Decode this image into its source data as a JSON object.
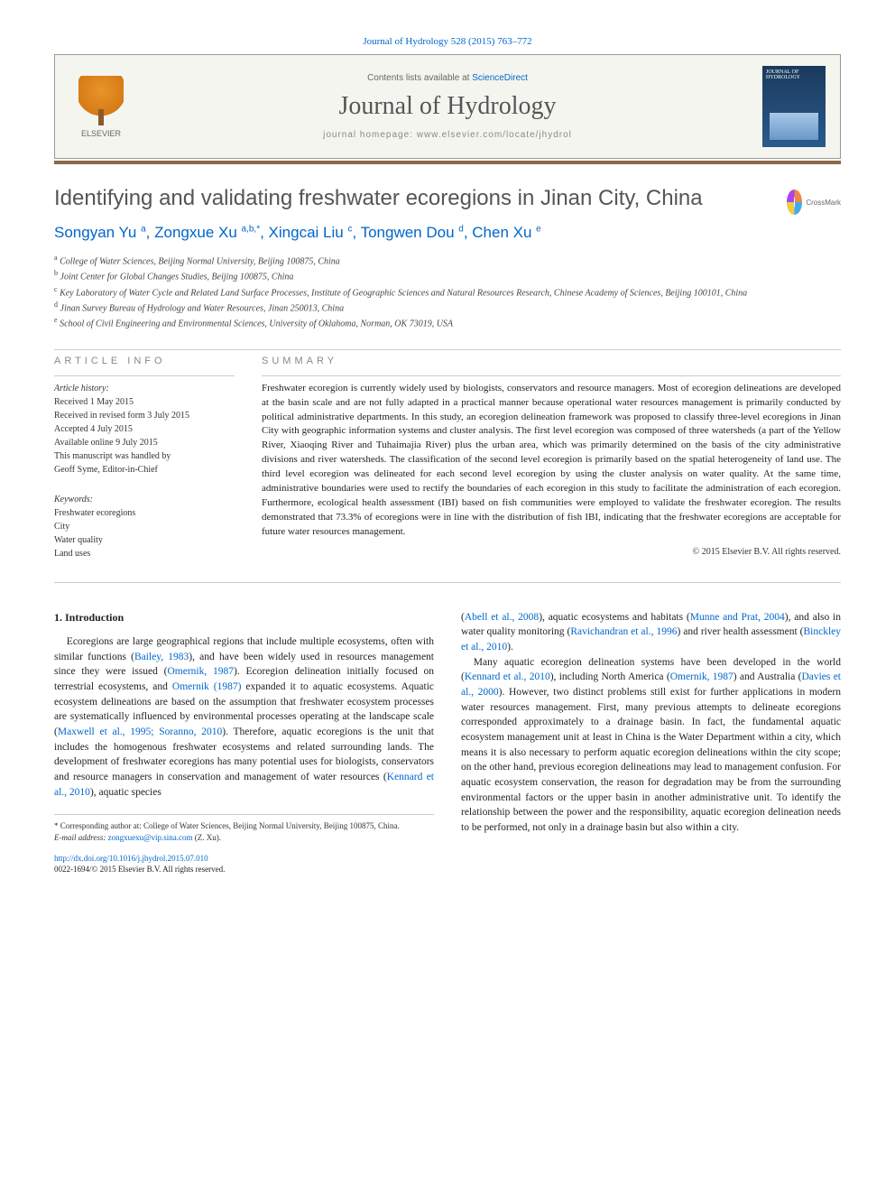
{
  "citation": "Journal of Hydrology 528 (2015) 763–772",
  "header": {
    "publisher": "ELSEVIER",
    "contents_prefix": "Contents lists available at ",
    "contents_link": "ScienceDirect",
    "journal": "Journal of Hydrology",
    "homepage_prefix": "journal homepage: ",
    "homepage": "www.elsevier.com/locate/jhydrol",
    "cover_label": "JOURNAL OF HYDROLOGY"
  },
  "crossmark": "CrossMark",
  "title": "Identifying and validating freshwater ecoregions in Jinan City, China",
  "authors_html": "Songyan Yu <sup>a</sup>, Zongxue Xu <sup>a,b,*</sup>, Xingcai Liu <sup>c</sup>, Tongwen Dou <sup>d</sup>, Chen Xu <sup>e</sup>",
  "affiliations": [
    {
      "sup": "a",
      "text": "College of Water Sciences, Beijing Normal University, Beijing 100875, China"
    },
    {
      "sup": "b",
      "text": "Joint Center for Global Changes Studies, Beijing 100875, China"
    },
    {
      "sup": "c",
      "text": "Key Laboratory of Water Cycle and Related Land Surface Processes, Institute of Geographic Sciences and Natural Resources Research, Chinese Academy of Sciences, Beijing 100101, China"
    },
    {
      "sup": "d",
      "text": "Jinan Survey Bureau of Hydrology and Water Resources, Jinan 250013, China"
    },
    {
      "sup": "e",
      "text": "School of Civil Engineering and Environmental Sciences, University of Oklahoma, Norman, OK 73019, USA"
    }
  ],
  "info": {
    "label": "ARTICLE INFO",
    "history_label": "Article history:",
    "history": [
      "Received 1 May 2015",
      "Received in revised form 3 July 2015",
      "Accepted 4 July 2015",
      "Available online 9 July 2015",
      "This manuscript was handled by",
      "Geoff Syme, Editor-in-Chief"
    ],
    "keywords_label": "Keywords:",
    "keywords": [
      "Freshwater ecoregions",
      "City",
      "Water quality",
      "Land uses"
    ]
  },
  "summary": {
    "label": "SUMMARY",
    "text": "Freshwater ecoregion is currently widely used by biologists, conservators and resource managers. Most of ecoregion delineations are developed at the basin scale and are not fully adapted in a practical manner because operational water resources management is primarily conducted by political administrative departments. In this study, an ecoregion delineation framework was proposed to classify three-level ecoregions in Jinan City with geographic information systems and cluster analysis. The first level ecoregion was composed of three watersheds (a part of the Yellow River, Xiaoqing River and Tuhaimajia River) plus the urban area, which was primarily determined on the basis of the city administrative divisions and river watersheds. The classification of the second level ecoregion is primarily based on the spatial heterogeneity of land use. The third level ecoregion was delineated for each second level ecoregion by using the cluster analysis on water quality. At the same time, administrative boundaries were used to rectify the boundaries of each ecoregion in this study to facilitate the administration of each ecoregion. Furthermore, ecological health assessment (IBI) based on fish communities were employed to validate the freshwater ecoregion. The results demonstrated that 73.3% of ecoregions were in line with the distribution of fish IBI, indicating that the freshwater ecoregions are acceptable for future water resources management.",
    "copyright": "© 2015 Elsevier B.V. All rights reserved."
  },
  "body": {
    "heading": "1. Introduction",
    "col1_p1_pre": "Ecoregions are large geographical regions that include multiple ecosystems, often with similar functions (",
    "col1_p1_r1": "Bailey, 1983",
    "col1_p1_m1": "), and have been widely used in resources management since they were issued (",
    "col1_p1_r2": "Omernik, 1987",
    "col1_p1_m2": "). Ecoregion delineation initially focused on terrestrial ecosystems, and ",
    "col1_p1_r3": "Omernik (1987)",
    "col1_p1_m3": " expanded it to aquatic ecosystems. Aquatic ecosystem delineations are based on the assumption that freshwater ecosystem processes are systematically influenced by environmental processes operating at the landscape scale (",
    "col1_p1_r4": "Maxwell et al., 1995; Soranno, 2010",
    "col1_p1_m4": "). Therefore, aquatic ecoregions is the unit that includes the homogenous freshwater ecosystems and related surrounding lands. The development of freshwater ecoregions has many potential uses for biologists, conservators and resource managers in conservation and management of water resources (",
    "col1_p1_r5": "Kennard et al., 2010",
    "col1_p1_end": "), aquatic species",
    "col2_p0_pre": "(",
    "col2_p0_r1": "Abell et al., 2008",
    "col2_p0_m1": "), aquatic ecosystems and habitats (",
    "col2_p0_r2": "Munne and Prat, 2004",
    "col2_p0_m2": "), and also in water quality monitoring (",
    "col2_p0_r3": "Ravichandran et al., 1996",
    "col2_p0_m3": ") and river health assessment (",
    "col2_p0_r4": "Binckley et al., 2010",
    "col2_p0_end": ").",
    "col2_p1_pre": "Many aquatic ecoregion delineation systems have been developed in the world (",
    "col2_p1_r1": "Kennard et al., 2010",
    "col2_p1_m1": "), including North America (",
    "col2_p1_r2": "Omernik, 1987",
    "col2_p1_m2": ") and Australia (",
    "col2_p1_r3": "Davies et al., 2000",
    "col2_p1_end": "). However, two distinct problems still exist for further applications in modern water resources management. First, many previous attempts to delineate ecoregions corresponded approximately to a drainage basin. In fact, the fundamental aquatic ecosystem management unit at least in China is the Water Department within a city, which means it is also necessary to perform aquatic ecoregion delineations within the city scope; on the other hand, previous ecoregion delineations may lead to management confusion. For aquatic ecosystem conservation, the reason for degradation may be from the surrounding environmental factors or the upper basin in another administrative unit. To identify the relationship between the power and the responsibility, aquatic ecoregion delineation needs to be performed, not only in a drainage basin but also within a city."
  },
  "footnote": {
    "corr": "* Corresponding author at: College of Water Sciences, Beijing Normal University, Beijing 100875, China.",
    "email_label": "E-mail address: ",
    "email": "zongxuexu@vip.sina.com",
    "email_tail": " (Z. Xu)."
  },
  "doi": {
    "url": "http://dx.doi.org/10.1016/j.jhydrol.2015.07.010",
    "issn": "0022-1694/© 2015 Elsevier B.V. All rights reserved."
  },
  "colors": {
    "link": "#0066cc",
    "separator": "#8a6a4a",
    "header_bg": "#f5f5f0",
    "text": "#222222"
  }
}
